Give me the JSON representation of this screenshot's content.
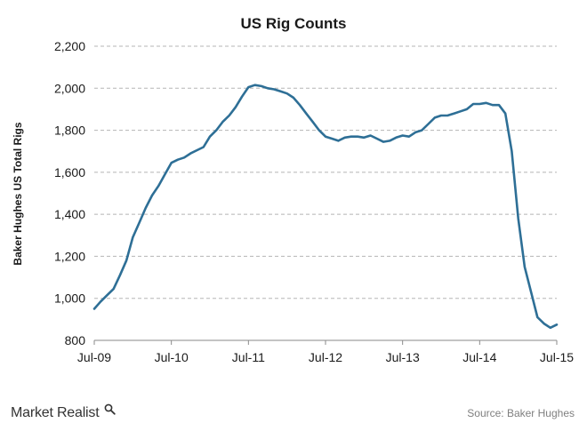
{
  "chart_data": {
    "type": "line",
    "title": "US Rig Counts",
    "ylabel": "Baker Hughes US Total Rigs",
    "xlabel": "",
    "ylim": [
      800,
      2200
    ],
    "yticks": [
      800,
      1000,
      1200,
      1400,
      1600,
      1800,
      2000,
      2200
    ],
    "ytick_labels": [
      "800",
      "1,000",
      "1,200",
      "1,400",
      "1,600",
      "1,800",
      "2,000",
      "2,200"
    ],
    "xlim": [
      "2009-07",
      "2015-07"
    ],
    "xticks": [
      "2009-07",
      "2010-07",
      "2011-07",
      "2012-07",
      "2013-07",
      "2014-07",
      "2015-07"
    ],
    "xtick_labels": [
      "Jul-09",
      "Jul-10",
      "Jul-11",
      "Jul-12",
      "Jul-13",
      "Jul-14",
      "Jul-15"
    ],
    "grid": true,
    "series": [
      {
        "color": "#2e6f96",
        "x": [
          "2009-07",
          "2009-08",
          "2009-09",
          "2009-10",
          "2009-11",
          "2009-12",
          "2010-01",
          "2010-02",
          "2010-03",
          "2010-04",
          "2010-05",
          "2010-06",
          "2010-07",
          "2010-08",
          "2010-09",
          "2010-10",
          "2010-11",
          "2010-12",
          "2011-01",
          "2011-02",
          "2011-03",
          "2011-04",
          "2011-05",
          "2011-06",
          "2011-07",
          "2011-08",
          "2011-09",
          "2011-10",
          "2011-11",
          "2011-12",
          "2012-01",
          "2012-02",
          "2012-03",
          "2012-04",
          "2012-05",
          "2012-06",
          "2012-07",
          "2012-08",
          "2012-09",
          "2012-10",
          "2012-11",
          "2012-12",
          "2013-01",
          "2013-02",
          "2013-03",
          "2013-04",
          "2013-05",
          "2013-06",
          "2013-07",
          "2013-08",
          "2013-09",
          "2013-10",
          "2013-11",
          "2013-12",
          "2014-01",
          "2014-02",
          "2014-03",
          "2014-04",
          "2014-05",
          "2014-06",
          "2014-07",
          "2014-08",
          "2014-09",
          "2014-10",
          "2014-11",
          "2014-12",
          "2015-01",
          "2015-02",
          "2015-03",
          "2015-04",
          "2015-05",
          "2015-06",
          "2015-07"
        ],
        "y": [
          950,
          985,
          1015,
          1045,
          1110,
          1180,
          1290,
          1360,
          1430,
          1490,
          1535,
          1590,
          1645,
          1660,
          1670,
          1690,
          1705,
          1720,
          1770,
          1800,
          1840,
          1870,
          1910,
          1960,
          2005,
          2015,
          2010,
          2000,
          1995,
          1985,
          1975,
          1955,
          1920,
          1880,
          1840,
          1800,
          1770,
          1760,
          1750,
          1765,
          1770,
          1770,
          1765,
          1775,
          1760,
          1745,
          1750,
          1765,
          1775,
          1770,
          1790,
          1800,
          1830,
          1860,
          1870,
          1870,
          1880,
          1890,
          1900,
          1925,
          1925,
          1930,
          1920,
          1920,
          1880,
          1700,
          1380,
          1150,
          1030,
          910,
          880,
          860,
          875
        ]
      }
    ]
  },
  "footer": {
    "brand": "Market Realist",
    "source": "Source: Baker Hughes"
  }
}
